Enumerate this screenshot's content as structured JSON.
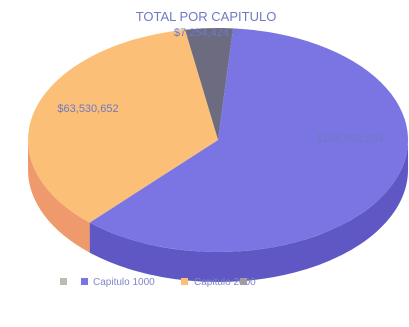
{
  "chart_data": {
    "type": "pie",
    "title": "TOTAL POR CAPITULO",
    "categories": [
      "",
      "Capitulo 1000",
      "Capitulo 2000"
    ],
    "values": [
      7254424.4,
      108592293,
      63530652
    ],
    "value_labels": [
      "$7,254,424.4",
      "$108,592,293",
      "$63,530,652"
    ],
    "colors": [
      "#6c6b80",
      "#7b75e3",
      "#fbbf78"
    ],
    "side_colors": [
      "#4e4d5e",
      "#5f57c3",
      "#ef9a6c"
    ],
    "label_colors": [
      "#6e79c4",
      "#6e79c4",
      "#6e79c4"
    ],
    "legend_position": "bottom",
    "legend": [
      {
        "color": "#b9bdb0",
        "label": ""
      },
      {
        "color": "#7b75e3",
        "label": "Capitulo 1000"
      },
      {
        "color": "#fbbf78",
        "label": "Capitulo 2000"
      },
      {
        "color": "#a39aa6",
        "label": ""
      }
    ]
  }
}
